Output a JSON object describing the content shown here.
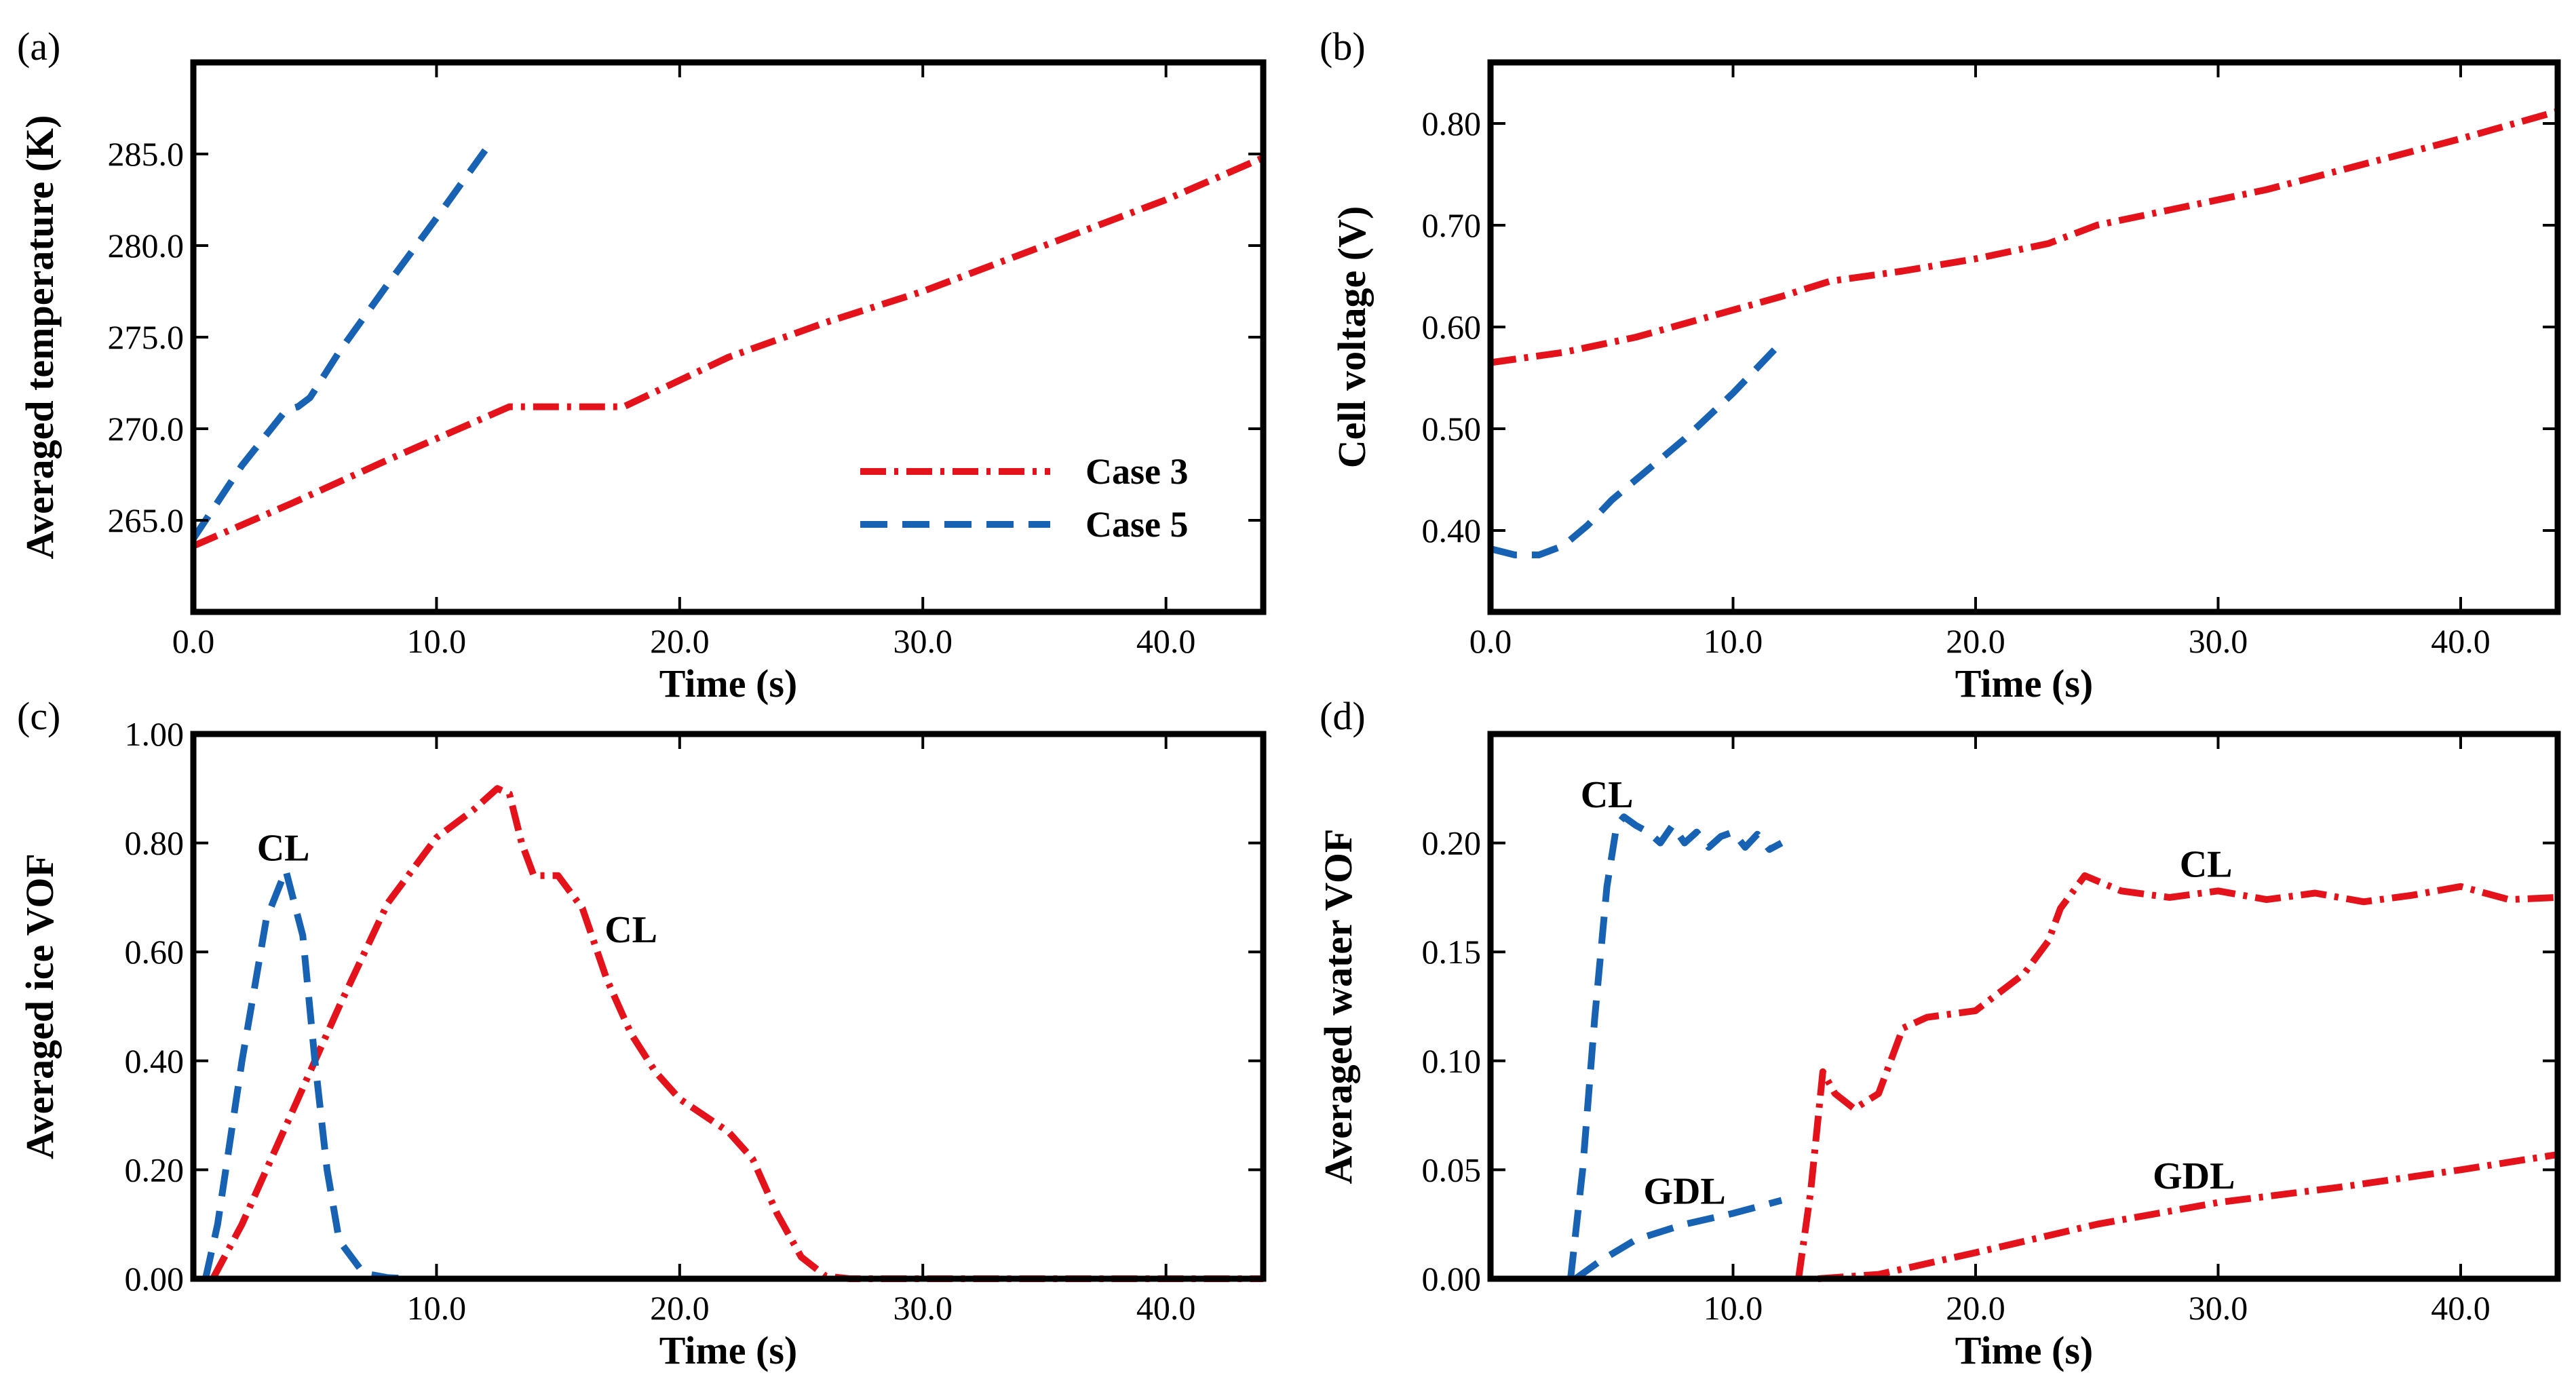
{
  "colors": {
    "case3": "#e4121b",
    "case5": "#1762b3"
  },
  "legend": {
    "case3": "Case 3",
    "case5": "Case 5"
  },
  "chart_data": [
    {
      "id": "a",
      "type": "line",
      "panel_label": "(a)",
      "xlabel": "Time (s)",
      "ylabel": "Averaged temperature (K)",
      "xlim": [
        0,
        44
      ],
      "ylim": [
        260,
        290
      ],
      "xticks": [
        0,
        10,
        20,
        30,
        40
      ],
      "xtick_labels": [
        "0.0",
        "10.0",
        "20.0",
        "30.0",
        "40.0"
      ],
      "yticks": [
        265,
        270,
        275,
        280,
        285
      ],
      "ytick_labels": [
        "265.0",
        "270.0",
        "275.0",
        "280.0",
        "285.0"
      ],
      "series": [
        {
          "name": "Case 3",
          "style": "dashdot",
          "color_key": "case3",
          "x": [
            0,
            4,
            8,
            13,
            17.7,
            22,
            26,
            30,
            35,
            40,
            44
          ],
          "y": [
            263.6,
            265.9,
            268.3,
            271.2,
            271.2,
            273.9,
            275.8,
            277.5,
            280.0,
            282.5,
            284.8
          ]
        },
        {
          "name": "Case 5",
          "style": "dashed",
          "color_key": "case5",
          "x": [
            0,
            2,
            3.8,
            4.3,
            4.8,
            6,
            8,
            10,
            12
          ],
          "y": [
            264.0,
            268.0,
            271.0,
            271.2,
            271.7,
            274.2,
            277.9,
            281.5,
            285.2
          ]
        }
      ],
      "annotations": [],
      "legend_entries": [
        "Case 3",
        "Case 5"
      ]
    },
    {
      "id": "b",
      "type": "line",
      "panel_label": "(b)",
      "xlabel": "Time (s)",
      "ylabel": "Cell voltage (V)",
      "xlim": [
        0,
        44
      ],
      "ylim": [
        0.32,
        0.86
      ],
      "xticks": [
        0,
        10,
        20,
        30,
        40
      ],
      "xtick_labels": [
        "0.0",
        "10.0",
        "20.0",
        "30.0",
        "40.0"
      ],
      "yticks": [
        0.4,
        0.5,
        0.6,
        0.7,
        0.8
      ],
      "ytick_labels": [
        "0.40",
        "0.50",
        "0.60",
        "0.70",
        "0.80"
      ],
      "series": [
        {
          "name": "Case 3",
          "style": "dashdot",
          "color_key": "case3",
          "x": [
            0,
            3,
            6,
            9,
            12,
            14,
            17,
            20,
            23,
            25,
            28,
            32,
            36,
            40,
            44
          ],
          "y": [
            0.565,
            0.575,
            0.59,
            0.61,
            0.63,
            0.645,
            0.655,
            0.667,
            0.682,
            0.7,
            0.715,
            0.735,
            0.76,
            0.785,
            0.812
          ]
        },
        {
          "name": "Case 5",
          "style": "dashed",
          "color_key": "case5",
          "x": [
            0,
            1,
            2,
            3,
            4,
            5,
            6,
            8,
            10,
            12
          ],
          "y": [
            0.382,
            0.376,
            0.376,
            0.385,
            0.405,
            0.43,
            0.45,
            0.49,
            0.535,
            0.585
          ]
        }
      ],
      "annotations": []
    },
    {
      "id": "c",
      "type": "line",
      "panel_label": "(c)",
      "xlabel": "Time (s)",
      "ylabel": "Averaged ice VOF",
      "xlim": [
        0,
        44
      ],
      "ylim": [
        0,
        1.0
      ],
      "xticks": [
        10,
        20,
        30,
        40
      ],
      "xtick_labels": [
        "10.0",
        "20.0",
        "30.0",
        "40.0"
      ],
      "yticks": [
        0,
        0.2,
        0.4,
        0.6,
        0.8,
        1.0
      ],
      "ytick_labels": [
        "0.00",
        "0.20",
        "0.40",
        "0.60",
        "0.80",
        "1.00"
      ],
      "series": [
        {
          "name": "Case 3",
          "style": "dashdot",
          "color_key": "case3",
          "x": [
            0.8,
            2,
            4,
            6,
            8,
            10,
            11.5,
            12.5,
            13,
            13.5,
            14,
            15,
            16,
            17,
            18,
            19,
            20,
            21,
            22,
            23,
            24,
            25,
            26,
            27,
            30,
            44
          ],
          "y": [
            0.0,
            0.1,
            0.3,
            0.5,
            0.69,
            0.81,
            0.86,
            0.9,
            0.89,
            0.8,
            0.74,
            0.74,
            0.68,
            0.55,
            0.45,
            0.38,
            0.33,
            0.3,
            0.27,
            0.22,
            0.12,
            0.04,
            0.005,
            0.0,
            0.0,
            0.0
          ]
        },
        {
          "name": "Case 5",
          "style": "dashed",
          "color_key": "case5",
          "x": [
            0.5,
            1,
            2,
            3,
            3.8,
            4.5,
            5,
            5.5,
            6,
            7,
            8,
            9
          ],
          "y": [
            0.0,
            0.1,
            0.4,
            0.66,
            0.75,
            0.63,
            0.4,
            0.2,
            0.07,
            0.01,
            0.002,
            0.0
          ]
        }
      ],
      "annotations": [
        {
          "text": "CL",
          "x": 3.7,
          "y": 0.79
        },
        {
          "text": "CL",
          "x": 18.0,
          "y": 0.64
        }
      ]
    },
    {
      "id": "d",
      "type": "line",
      "panel_label": "(d)",
      "xlabel": "Time (s)",
      "ylabel": "Averaged water VOF",
      "xlim": [
        0,
        44
      ],
      "ylim": [
        0,
        0.25
      ],
      "xticks": [
        10,
        20,
        30,
        40
      ],
      "xtick_labels": [
        "10.0",
        "20.0",
        "30.0",
        "40.0"
      ],
      "yticks": [
        0,
        0.05,
        0.1,
        0.15,
        0.2
      ],
      "ytick_labels": [
        "0.00",
        "0.05",
        "0.10",
        "0.15",
        "0.20"
      ],
      "series": [
        {
          "name": "Case 3 CL",
          "style": "dashdot",
          "color_key": "case3",
          "x": [
            12.7,
            13.2,
            13.7,
            14.2,
            15,
            16,
            17,
            18,
            20,
            22,
            23,
            23.5,
            24.5,
            26,
            28,
            30,
            32,
            34,
            36,
            38,
            40,
            42,
            44
          ],
          "y": [
            0.0,
            0.04,
            0.095,
            0.085,
            0.078,
            0.085,
            0.115,
            0.12,
            0.123,
            0.14,
            0.155,
            0.17,
            0.185,
            0.178,
            0.175,
            0.178,
            0.174,
            0.177,
            0.173,
            0.176,
            0.18,
            0.174,
            0.175
          ]
        },
        {
          "name": "Case 3 GDL",
          "style": "dashdot",
          "color_key": "case3",
          "x": [
            13.5,
            16,
            20,
            25,
            30,
            35,
            40,
            44
          ],
          "y": [
            0.0,
            0.002,
            0.012,
            0.025,
            0.035,
            0.042,
            0.05,
            0.057
          ]
        },
        {
          "name": "Case 5 CL",
          "style": "dashed",
          "color_key": "case5",
          "x": [
            3.3,
            3.8,
            4.3,
            4.8,
            5.2,
            5.5,
            6,
            6.5,
            7,
            7.5,
            8,
            8.5,
            9,
            9.5,
            10,
            10.5,
            11,
            11.5,
            12
          ],
          "y": [
            0.0,
            0.05,
            0.12,
            0.18,
            0.208,
            0.212,
            0.208,
            0.205,
            0.2,
            0.208,
            0.2,
            0.205,
            0.198,
            0.203,
            0.205,
            0.198,
            0.204,
            0.197,
            0.2
          ]
        },
        {
          "name": "Case 5 GDL",
          "style": "dashed",
          "color_key": "case5",
          "x": [
            3.5,
            4.5,
            6,
            8,
            10,
            12
          ],
          "y": [
            0.0,
            0.008,
            0.018,
            0.025,
            0.03,
            0.036
          ]
        }
      ],
      "annotations": [
        {
          "text": "CL",
          "x": 4.8,
          "y": 0.222
        },
        {
          "text": "GDL",
          "x": 8.0,
          "y": 0.04
        },
        {
          "text": "CL",
          "x": 29.5,
          "y": 0.19
        },
        {
          "text": "GDL",
          "x": 29.0,
          "y": 0.047
        }
      ]
    }
  ]
}
